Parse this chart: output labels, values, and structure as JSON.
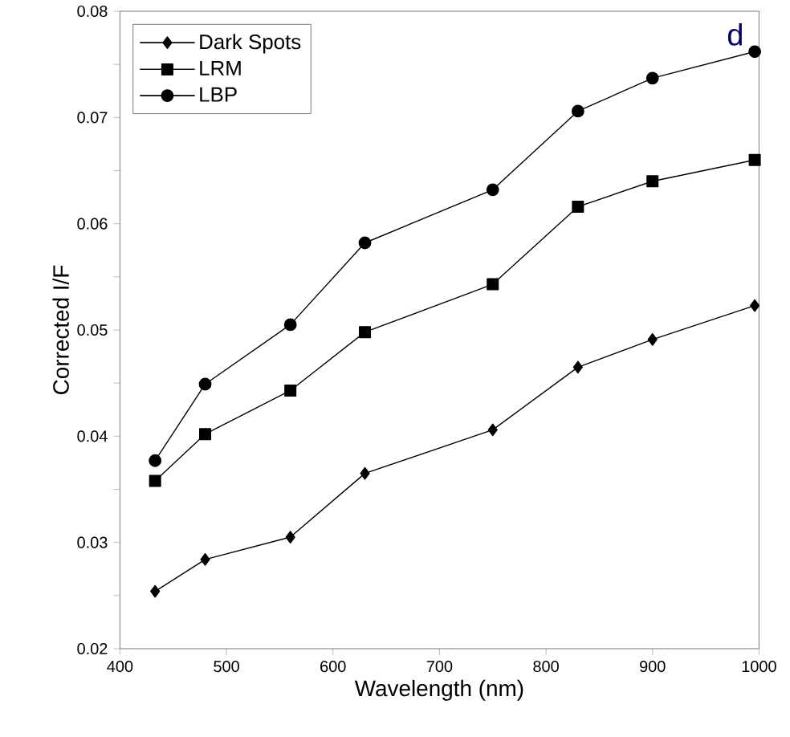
{
  "chart_data": {
    "type": "line",
    "xlabel": "Wavelength (nm)",
    "ylabel": "Corrected I/F",
    "annotations": [
      "d"
    ],
    "xlim": [
      400,
      1000
    ],
    "xticks": [
      400,
      500,
      600,
      700,
      800,
      900,
      1000
    ],
    "ylim": [
      0.02,
      0.08
    ],
    "yticks": [
      0.02,
      {
        "value": 0.025,
        "label": null
      },
      0.03,
      {
        "value": 0.035,
        "label": null
      },
      0.04,
      {
        "value": 0.045,
        "label": null
      },
      0.05,
      {
        "value": 0.055,
        "label": null
      },
      0.06,
      {
        "value": 0.065,
        "label": null
      },
      0.07,
      {
        "value": 0.075,
        "label": null
      },
      0.08
    ],
    "x": [
      433,
      480,
      560,
      630,
      750,
      830,
      900,
      996
    ],
    "legend": "top left",
    "grid": false,
    "line_style": "solid",
    "series": [
      {
        "name": "Dark Spots",
        "color": "#000000",
        "marker": "diamond",
        "values": [
          0.0254,
          0.0284,
          0.0305,
          0.0365,
          0.0406,
          0.0465,
          0.0491,
          0.0523
        ]
      },
      {
        "name": "LRM",
        "color": "#000000",
        "marker": "square",
        "values": [
          0.0358,
          0.0402,
          0.0443,
          0.0498,
          0.0543,
          0.0616,
          0.064,
          0.066
        ]
      },
      {
        "name": "LBP",
        "color": "#000000",
        "marker": "circle",
        "values": [
          0.0377,
          0.0449,
          0.0505,
          0.0582,
          0.0632,
          0.0706,
          0.0737,
          0.0762
        ]
      }
    ]
  }
}
